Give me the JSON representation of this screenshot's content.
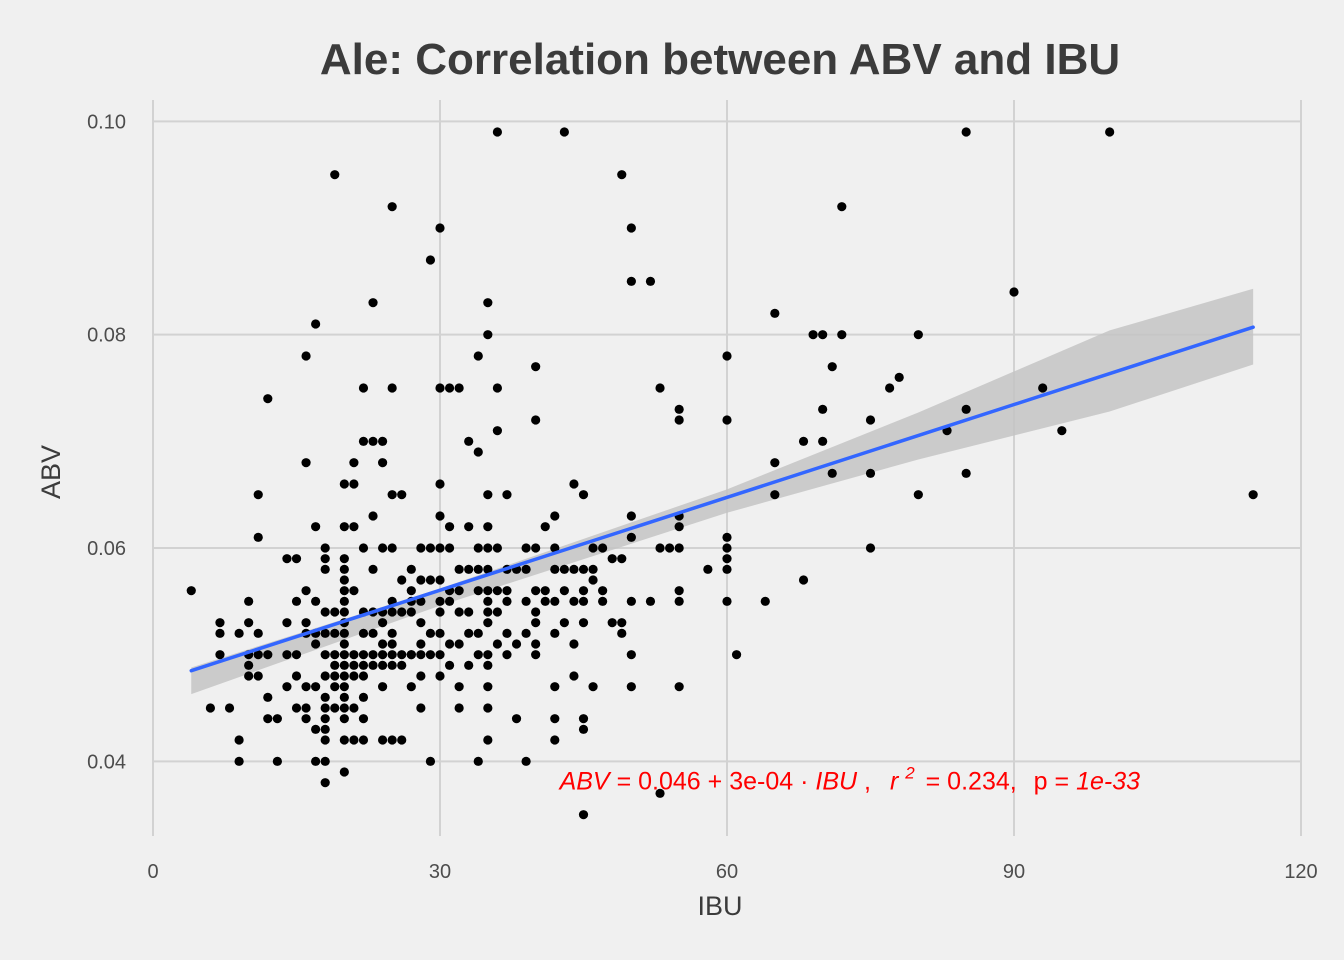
{
  "chart_data": {
    "type": "scatter",
    "title": "Ale: Correlation between ABV and IBU",
    "xlabel": "IBU",
    "ylabel": "ABV",
    "xlim": [
      0,
      120
    ],
    "ylim": [
      0.033,
      0.102
    ],
    "x_ticks": [
      0,
      30,
      60,
      90,
      120
    ],
    "x_tick_labels": [
      "0",
      "30",
      "60",
      "90",
      "120"
    ],
    "y_ticks": [
      0.04,
      0.06,
      0.08,
      0.1
    ],
    "y_tick_labels": [
      "0.04",
      "0.06",
      "0.08",
      "0.10"
    ],
    "grid": true,
    "point_color": "#000000",
    "fit_line_color": "#3366ff",
    "ribbon_color": "#c4c4c4",
    "annotation_color": "#ff0000",
    "fit": {
      "intercept": 0.046,
      "slope": 0.0003,
      "x_range": [
        4,
        115
      ],
      "band": [
        [
          4,
          0.0463,
          0.0488
        ],
        [
          30,
          0.0546,
          0.0562
        ],
        [
          60,
          0.0633,
          0.0655
        ],
        [
          80,
          0.0683,
          0.0727
        ],
        [
          100,
          0.0728,
          0.0804
        ],
        [
          115,
          0.0772,
          0.0843
        ]
      ]
    },
    "annotation": {
      "lhs": "ABV",
      "eq": "=",
      "intercept": "0.046",
      "plus": "+",
      "slope": "3e-04",
      "dot": "·",
      "var": "IBU",
      "comma1": ",",
      "r": "r",
      "r_sup": "2",
      "r2_eq": "= 0.234,",
      "p_lab": "p =",
      "p_val": "1e-33",
      "x": 42.5,
      "y": 0.0382
    },
    "points": [
      [
        4,
        0.056
      ],
      [
        6,
        0.045
      ],
      [
        7,
        0.05
      ],
      [
        7,
        0.052
      ],
      [
        7,
        0.053
      ],
      [
        8,
        0.045
      ],
      [
        9,
        0.042
      ],
      [
        9,
        0.04
      ],
      [
        9,
        0.052
      ],
      [
        10,
        0.055
      ],
      [
        10,
        0.05
      ],
      [
        10,
        0.049
      ],
      [
        10,
        0.048
      ],
      [
        10,
        0.053
      ],
      [
        11,
        0.065
      ],
      [
        11,
        0.061
      ],
      [
        11,
        0.05
      ],
      [
        11,
        0.052
      ],
      [
        11,
        0.048
      ],
      [
        12,
        0.074
      ],
      [
        12,
        0.05
      ],
      [
        12,
        0.046
      ],
      [
        12,
        0.044
      ],
      [
        13,
        0.044
      ],
      [
        13,
        0.04
      ],
      [
        14,
        0.053
      ],
      [
        14,
        0.059
      ],
      [
        14,
        0.047
      ],
      [
        14,
        0.05
      ],
      [
        15,
        0.059
      ],
      [
        15,
        0.055
      ],
      [
        15,
        0.045
      ],
      [
        15,
        0.048
      ],
      [
        15,
        0.05
      ],
      [
        16,
        0.078
      ],
      [
        16,
        0.068
      ],
      [
        16,
        0.056
      ],
      [
        16,
        0.052
      ],
      [
        16,
        0.047
      ],
      [
        16,
        0.045
      ],
      [
        16,
        0.044
      ],
      [
        16,
        0.053
      ],
      [
        17,
        0.081
      ],
      [
        17,
        0.062
      ],
      [
        17,
        0.055
      ],
      [
        17,
        0.051
      ],
      [
        17,
        0.047
      ],
      [
        17,
        0.043
      ],
      [
        17,
        0.04
      ],
      [
        17,
        0.052
      ],
      [
        18,
        0.06
      ],
      [
        18,
        0.059
      ],
      [
        18,
        0.058
      ],
      [
        18,
        0.054
      ],
      [
        18,
        0.052
      ],
      [
        18,
        0.05
      ],
      [
        18,
        0.048
      ],
      [
        18,
        0.046
      ],
      [
        18,
        0.045
      ],
      [
        18,
        0.044
      ],
      [
        18,
        0.043
      ],
      [
        18,
        0.042
      ],
      [
        18,
        0.04
      ],
      [
        18,
        0.038
      ],
      [
        19,
        0.095
      ],
      [
        19,
        0.054
      ],
      [
        19,
        0.052
      ],
      [
        19,
        0.05
      ],
      [
        19,
        0.049
      ],
      [
        19,
        0.048
      ],
      [
        19,
        0.047
      ],
      [
        19,
        0.045
      ],
      [
        20,
        0.066
      ],
      [
        20,
        0.062
      ],
      [
        20,
        0.059
      ],
      [
        20,
        0.058
      ],
      [
        20,
        0.057
      ],
      [
        20,
        0.056
      ],
      [
        20,
        0.055
      ],
      [
        20,
        0.054
      ],
      [
        20,
        0.053
      ],
      [
        20,
        0.052
      ],
      [
        20,
        0.051
      ],
      [
        20,
        0.05
      ],
      [
        20,
        0.049
      ],
      [
        20,
        0.048
      ],
      [
        20,
        0.047
      ],
      [
        20,
        0.046
      ],
      [
        20,
        0.045
      ],
      [
        20,
        0.044
      ],
      [
        20,
        0.042
      ],
      [
        20,
        0.039
      ],
      [
        21,
        0.068
      ],
      [
        21,
        0.066
      ],
      [
        21,
        0.062
      ],
      [
        21,
        0.056
      ],
      [
        21,
        0.05
      ],
      [
        21,
        0.049
      ],
      [
        21,
        0.048
      ],
      [
        21,
        0.045
      ],
      [
        21,
        0.042
      ],
      [
        22,
        0.075
      ],
      [
        22,
        0.07
      ],
      [
        22,
        0.06
      ],
      [
        22,
        0.054
      ],
      [
        22,
        0.052
      ],
      [
        22,
        0.05
      ],
      [
        22,
        0.049
      ],
      [
        22,
        0.048
      ],
      [
        22,
        0.046
      ],
      [
        22,
        0.044
      ],
      [
        22,
        0.042
      ],
      [
        23,
        0.083
      ],
      [
        23,
        0.07
      ],
      [
        23,
        0.063
      ],
      [
        23,
        0.058
      ],
      [
        23,
        0.054
      ],
      [
        23,
        0.052
      ],
      [
        23,
        0.05
      ],
      [
        23,
        0.049
      ],
      [
        24,
        0.07
      ],
      [
        24,
        0.068
      ],
      [
        24,
        0.06
      ],
      [
        24,
        0.054
      ],
      [
        24,
        0.053
      ],
      [
        24,
        0.051
      ],
      [
        24,
        0.05
      ],
      [
        24,
        0.049
      ],
      [
        24,
        0.047
      ],
      [
        24,
        0.042
      ],
      [
        25,
        0.092
      ],
      [
        25,
        0.075
      ],
      [
        25,
        0.065
      ],
      [
        25,
        0.06
      ],
      [
        25,
        0.055
      ],
      [
        25,
        0.054
      ],
      [
        25,
        0.052
      ],
      [
        25,
        0.051
      ],
      [
        25,
        0.05
      ],
      [
        25,
        0.049
      ],
      [
        25,
        0.042
      ],
      [
        26,
        0.065
      ],
      [
        26,
        0.057
      ],
      [
        26,
        0.054
      ],
      [
        26,
        0.05
      ],
      [
        26,
        0.049
      ],
      [
        26,
        0.042
      ],
      [
        27,
        0.058
      ],
      [
        27,
        0.056
      ],
      [
        27,
        0.055
      ],
      [
        27,
        0.054
      ],
      [
        27,
        0.05
      ],
      [
        27,
        0.05
      ],
      [
        27,
        0.047
      ],
      [
        28,
        0.06
      ],
      [
        28,
        0.057
      ],
      [
        28,
        0.055
      ],
      [
        28,
        0.053
      ],
      [
        28,
        0.051
      ],
      [
        28,
        0.05
      ],
      [
        28,
        0.048
      ],
      [
        28,
        0.045
      ],
      [
        29,
        0.087
      ],
      [
        29,
        0.06
      ],
      [
        29,
        0.057
      ],
      [
        29,
        0.052
      ],
      [
        29,
        0.05
      ],
      [
        29,
        0.04
      ],
      [
        30,
        0.09
      ],
      [
        30,
        0.075
      ],
      [
        30,
        0.066
      ],
      [
        30,
        0.063
      ],
      [
        30,
        0.06
      ],
      [
        30,
        0.057
      ],
      [
        30,
        0.055
      ],
      [
        30,
        0.054
      ],
      [
        30,
        0.052
      ],
      [
        30,
        0.05
      ],
      [
        30,
        0.048
      ],
      [
        31,
        0.075
      ],
      [
        31,
        0.062
      ],
      [
        31,
        0.06
      ],
      [
        31,
        0.056
      ],
      [
        31,
        0.055
      ],
      [
        31,
        0.051
      ],
      [
        31,
        0.049
      ],
      [
        32,
        0.075
      ],
      [
        32,
        0.058
      ],
      [
        32,
        0.056
      ],
      [
        32,
        0.054
      ],
      [
        32,
        0.051
      ],
      [
        32,
        0.047
      ],
      [
        32,
        0.045
      ],
      [
        33,
        0.07
      ],
      [
        33,
        0.062
      ],
      [
        33,
        0.058
      ],
      [
        33,
        0.054
      ],
      [
        33,
        0.052
      ],
      [
        33,
        0.049
      ],
      [
        34,
        0.078
      ],
      [
        34,
        0.069
      ],
      [
        34,
        0.06
      ],
      [
        34,
        0.058
      ],
      [
        34,
        0.056
      ],
      [
        34,
        0.052
      ],
      [
        34,
        0.05
      ],
      [
        34,
        0.04
      ],
      [
        35,
        0.083
      ],
      [
        35,
        0.08
      ],
      [
        35,
        0.065
      ],
      [
        35,
        0.062
      ],
      [
        35,
        0.06
      ],
      [
        35,
        0.058
      ],
      [
        35,
        0.056
      ],
      [
        35,
        0.055
      ],
      [
        35,
        0.054
      ],
      [
        35,
        0.053
      ],
      [
        35,
        0.05
      ],
      [
        35,
        0.049
      ],
      [
        35,
        0.047
      ],
      [
        35,
        0.045
      ],
      [
        35,
        0.042
      ],
      [
        36,
        0.099
      ],
      [
        36,
        0.075
      ],
      [
        36,
        0.071
      ],
      [
        36,
        0.06
      ],
      [
        36,
        0.056
      ],
      [
        36,
        0.054
      ],
      [
        36,
        0.051
      ],
      [
        37,
        0.065
      ],
      [
        37,
        0.058
      ],
      [
        37,
        0.056
      ],
      [
        37,
        0.055
      ],
      [
        37,
        0.052
      ],
      [
        37,
        0.05
      ],
      [
        38,
        0.058
      ],
      [
        38,
        0.051
      ],
      [
        38,
        0.044
      ],
      [
        39,
        0.06
      ],
      [
        39,
        0.058
      ],
      [
        39,
        0.055
      ],
      [
        39,
        0.052
      ],
      [
        39,
        0.04
      ],
      [
        40,
        0.077
      ],
      [
        40,
        0.072
      ],
      [
        40,
        0.06
      ],
      [
        40,
        0.056
      ],
      [
        40,
        0.054
      ],
      [
        40,
        0.053
      ],
      [
        40,
        0.051
      ],
      [
        40,
        0.05
      ],
      [
        41,
        0.062
      ],
      [
        41,
        0.056
      ],
      [
        41,
        0.055
      ],
      [
        42,
        0.063
      ],
      [
        42,
        0.06
      ],
      [
        42,
        0.058
      ],
      [
        42,
        0.055
      ],
      [
        42,
        0.052
      ],
      [
        42,
        0.047
      ],
      [
        42,
        0.044
      ],
      [
        42,
        0.042
      ],
      [
        43,
        0.099
      ],
      [
        43,
        0.058
      ],
      [
        43,
        0.056
      ],
      [
        43,
        0.053
      ],
      [
        44,
        0.066
      ],
      [
        44,
        0.058
      ],
      [
        44,
        0.055
      ],
      [
        44,
        0.048
      ],
      [
        44,
        0.051
      ],
      [
        45,
        0.065
      ],
      [
        45,
        0.058
      ],
      [
        45,
        0.056
      ],
      [
        45,
        0.055
      ],
      [
        45,
        0.053
      ],
      [
        45,
        0.044
      ],
      [
        45,
        0.043
      ],
      [
        45,
        0.035
      ],
      [
        46,
        0.06
      ],
      [
        46,
        0.058
      ],
      [
        46,
        0.057
      ],
      [
        46,
        0.047
      ],
      [
        47,
        0.06
      ],
      [
        47,
        0.056
      ],
      [
        47,
        0.055
      ],
      [
        48,
        0.059
      ],
      [
        48,
        0.053
      ],
      [
        49,
        0.095
      ],
      [
        49,
        0.059
      ],
      [
        49,
        0.053
      ],
      [
        49,
        0.052
      ],
      [
        50,
        0.09
      ],
      [
        50,
        0.085
      ],
      [
        50,
        0.063
      ],
      [
        50,
        0.061
      ],
      [
        50,
        0.055
      ],
      [
        50,
        0.05
      ],
      [
        50,
        0.047
      ],
      [
        52,
        0.085
      ],
      [
        52,
        0.055
      ],
      [
        53,
        0.075
      ],
      [
        53,
        0.06
      ],
      [
        53,
        0.037
      ],
      [
        54,
        0.06
      ],
      [
        55,
        0.073
      ],
      [
        55,
        0.072
      ],
      [
        55,
        0.063
      ],
      [
        55,
        0.062
      ],
      [
        55,
        0.06
      ],
      [
        55,
        0.056
      ],
      [
        55,
        0.055
      ],
      [
        55,
        0.047
      ],
      [
        58,
        0.058
      ],
      [
        60,
        0.078
      ],
      [
        60,
        0.072
      ],
      [
        60,
        0.061
      ],
      [
        60,
        0.06
      ],
      [
        60,
        0.059
      ],
      [
        60,
        0.058
      ],
      [
        60,
        0.055
      ],
      [
        61,
        0.05
      ],
      [
        64,
        0.055
      ],
      [
        65,
        0.082
      ],
      [
        65,
        0.068
      ],
      [
        65,
        0.065
      ],
      [
        68,
        0.07
      ],
      [
        68,
        0.057
      ],
      [
        69,
        0.08
      ],
      [
        70,
        0.08
      ],
      [
        70,
        0.073
      ],
      [
        70,
        0.07
      ],
      [
        71,
        0.077
      ],
      [
        71,
        0.067
      ],
      [
        72,
        0.092
      ],
      [
        72,
        0.08
      ],
      [
        75,
        0.072
      ],
      [
        75,
        0.067
      ],
      [
        75,
        0.06
      ],
      [
        77,
        0.075
      ],
      [
        78,
        0.076
      ],
      [
        80,
        0.08
      ],
      [
        80,
        0.065
      ],
      [
        83,
        0.071
      ],
      [
        85,
        0.099
      ],
      [
        85,
        0.073
      ],
      [
        85,
        0.067
      ],
      [
        90,
        0.084
      ],
      [
        93,
        0.075
      ],
      [
        95,
        0.071
      ],
      [
        100,
        0.099
      ],
      [
        115,
        0.065
      ]
    ]
  }
}
